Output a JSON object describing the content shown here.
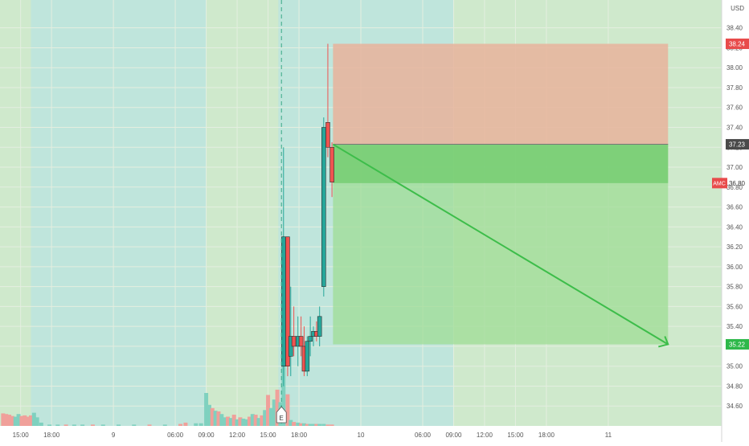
{
  "app": {
    "currency": "USD",
    "symbol_badge": "AMC"
  },
  "colors": {
    "up": "#26a69a",
    "down": "#ef5350",
    "vol_up": "#7fd1bf",
    "vol_down": "#f0a09a",
    "session_regular": "#cfe9cc",
    "session_extended": "#bfe5dc",
    "profit_zone": "#9fdc96",
    "loss_zone": "#e7b39b",
    "arrow": "#3dbd4a",
    "grid": "#e4eee0"
  },
  "badges": {
    "target": "35.22",
    "entry": "37.23",
    "stop": "38.24",
    "symbol_price": "36.80",
    "symbol": "AMC"
  },
  "chart_data": {
    "type": "candlestick",
    "ylim": [
      34.4,
      38.68
    ],
    "yticks": [
      "34.60",
      "34.80",
      "35.00",
      "35.20",
      "35.40",
      "35.60",
      "35.80",
      "36.00",
      "36.20",
      "36.40",
      "36.60",
      "36.80",
      "37.00",
      "37.20",
      "37.40",
      "37.60",
      "37.80",
      "38.00",
      "38.20",
      "38.40"
    ],
    "ytick_values": [
      34.6,
      34.8,
      35.0,
      35.2,
      35.4,
      35.6,
      35.8,
      36.0,
      36.2,
      36.4,
      36.6,
      36.8,
      37.0,
      37.2,
      37.4,
      37.6,
      37.8,
      38.0,
      38.2,
      38.4
    ],
    "xlim": [
      13.0,
      83.0
    ],
    "xticks": [
      "15:00",
      "18:00",
      "9",
      "06:00",
      "09:00",
      "12:00",
      "15:00",
      "18:00",
      "10",
      "06:00",
      "09:00",
      "12:00",
      "15:00",
      "18:00",
      "11"
    ],
    "xtick_values": [
      15,
      18,
      24,
      30,
      33,
      36,
      39,
      42,
      48,
      54,
      57,
      60,
      63,
      66,
      72
    ],
    "grid": true,
    "sessions": [
      {
        "type": "extended",
        "start": 16,
        "end": 33
      },
      {
        "type": "regular",
        "start": 33,
        "end": 40
      },
      {
        "type": "extended",
        "start": 40,
        "end": 57
      }
    ],
    "earnings_marker": {
      "time": 40.3,
      "label": "E"
    },
    "candles": [
      {
        "t": 40.5,
        "o": 35.0,
        "h": 37.2,
        "l": 34.8,
        "c": 36.3
      },
      {
        "t": 40.9,
        "o": 36.3,
        "h": 36.3,
        "l": 34.9,
        "c": 35.0
      },
      {
        "t": 41.2,
        "o": 35.1,
        "h": 35.8,
        "l": 34.9,
        "c": 35.3
      },
      {
        "t": 41.5,
        "o": 35.3,
        "h": 35.6,
        "l": 35.1,
        "c": 35.2
      },
      {
        "t": 41.9,
        "o": 35.2,
        "h": 35.5,
        "l": 35.0,
        "c": 35.3
      },
      {
        "t": 42.2,
        "o": 35.3,
        "h": 35.5,
        "l": 35.1,
        "c": 35.2
      },
      {
        "t": 42.5,
        "o": 35.2,
        "h": 35.4,
        "l": 34.9,
        "c": 34.95
      },
      {
        "t": 42.8,
        "o": 34.95,
        "h": 35.3,
        "l": 34.9,
        "c": 35.25
      },
      {
        "t": 43.1,
        "o": 35.25,
        "h": 35.5,
        "l": 35.1,
        "c": 35.3
      },
      {
        "t": 43.4,
        "o": 35.3,
        "h": 35.4,
        "l": 35.2,
        "c": 35.35
      },
      {
        "t": 43.7,
        "o": 35.35,
        "h": 35.45,
        "l": 35.25,
        "c": 35.3
      },
      {
        "t": 44.0,
        "o": 35.3,
        "h": 35.6,
        "l": 35.2,
        "c": 35.5
      },
      {
        "t": 44.4,
        "o": 35.8,
        "h": 37.5,
        "l": 35.7,
        "c": 37.4
      },
      {
        "t": 44.8,
        "o": 37.45,
        "h": 38.24,
        "l": 37.1,
        "c": 37.2
      },
      {
        "t": 45.2,
        "o": 37.2,
        "h": 37.25,
        "l": 36.7,
        "c": 36.85
      }
    ],
    "volume": [
      {
        "t": 13.3,
        "v": 19,
        "d": "down"
      },
      {
        "t": 13.6,
        "v": 18,
        "d": "down"
      },
      {
        "t": 13.9,
        "v": 17,
        "d": "down"
      },
      {
        "t": 14.2,
        "v": 15,
        "d": "down"
      },
      {
        "t": 14.5,
        "v": 14,
        "d": "up"
      },
      {
        "t": 14.8,
        "v": 18,
        "d": "up"
      },
      {
        "t": 15.1,
        "v": 15,
        "d": "down"
      },
      {
        "t": 15.4,
        "v": 16,
        "d": "down"
      },
      {
        "t": 15.7,
        "v": 14,
        "d": "down"
      },
      {
        "t": 16.0,
        "v": 16,
        "d": "down"
      },
      {
        "t": 16.3,
        "v": 20,
        "d": "up"
      },
      {
        "t": 16.6,
        "v": 13,
        "d": "up"
      },
      {
        "t": 17.0,
        "v": 5,
        "d": "up"
      },
      {
        "t": 17.8,
        "v": 2,
        "d": "up"
      },
      {
        "t": 18.6,
        "v": 2,
        "d": "up"
      },
      {
        "t": 19.4,
        "v": 2,
        "d": "down"
      },
      {
        "t": 20.2,
        "v": 2,
        "d": "up"
      },
      {
        "t": 21.0,
        "v": 2,
        "d": "up"
      },
      {
        "t": 22.0,
        "v": 2,
        "d": "down"
      },
      {
        "t": 23.0,
        "v": 2,
        "d": "up"
      },
      {
        "t": 24.5,
        "v": 2,
        "d": "up"
      },
      {
        "t": 26.0,
        "v": 2,
        "d": "up"
      },
      {
        "t": 27.5,
        "v": 2,
        "d": "down"
      },
      {
        "t": 29.0,
        "v": 2,
        "d": "up"
      },
      {
        "t": 30.5,
        "v": 3,
        "d": "down"
      },
      {
        "t": 31.0,
        "v": 5,
        "d": "down"
      },
      {
        "t": 32.0,
        "v": 4,
        "d": "up"
      },
      {
        "t": 32.5,
        "v": 4,
        "d": "up"
      },
      {
        "t": 33.0,
        "v": 50,
        "d": "up"
      },
      {
        "t": 33.3,
        "v": 32,
        "d": "up"
      },
      {
        "t": 33.6,
        "v": 27,
        "d": "down"
      },
      {
        "t": 33.9,
        "v": 23,
        "d": "up"
      },
      {
        "t": 34.2,
        "v": 22,
        "d": "down"
      },
      {
        "t": 34.5,
        "v": 18,
        "d": "up"
      },
      {
        "t": 34.8,
        "v": 13,
        "d": "up"
      },
      {
        "t": 35.1,
        "v": 14,
        "d": "down"
      },
      {
        "t": 35.4,
        "v": 12,
        "d": "up"
      },
      {
        "t": 35.7,
        "v": 17,
        "d": "down"
      },
      {
        "t": 36.0,
        "v": 10,
        "d": "up"
      },
      {
        "t": 36.3,
        "v": 13,
        "d": "down"
      },
      {
        "t": 36.6,
        "v": 11,
        "d": "up"
      },
      {
        "t": 36.9,
        "v": 10,
        "d": "up"
      },
      {
        "t": 37.2,
        "v": 14,
        "d": "down"
      },
      {
        "t": 37.5,
        "v": 18,
        "d": "up"
      },
      {
        "t": 37.8,
        "v": 17,
        "d": "down"
      },
      {
        "t": 38.1,
        "v": 12,
        "d": "up"
      },
      {
        "t": 38.4,
        "v": 16,
        "d": "down"
      },
      {
        "t": 38.7,
        "v": 24,
        "d": "up"
      },
      {
        "t": 39.0,
        "v": 47,
        "d": "down"
      },
      {
        "t": 39.3,
        "v": 27,
        "d": "up"
      },
      {
        "t": 39.6,
        "v": 40,
        "d": "up"
      },
      {
        "t": 39.9,
        "v": 55,
        "d": "down"
      },
      {
        "t": 40.2,
        "v": 36,
        "d": "up"
      },
      {
        "t": 40.5,
        "v": 100,
        "d": "up"
      },
      {
        "t": 40.9,
        "v": 48,
        "d": "down"
      },
      {
        "t": 41.2,
        "v": 9,
        "d": "up"
      },
      {
        "t": 41.5,
        "v": 6,
        "d": "down"
      },
      {
        "t": 41.9,
        "v": 5,
        "d": "up"
      },
      {
        "t": 42.2,
        "v": 4,
        "d": "down"
      },
      {
        "t": 42.5,
        "v": 4,
        "d": "up"
      },
      {
        "t": 42.8,
        "v": 3,
        "d": "down"
      },
      {
        "t": 43.1,
        "v": 3,
        "d": "up"
      },
      {
        "t": 43.4,
        "v": 3,
        "d": "up"
      },
      {
        "t": 43.7,
        "v": 3,
        "d": "down"
      },
      {
        "t": 44.0,
        "v": 3,
        "d": "up"
      },
      {
        "t": 44.4,
        "v": 3,
        "d": "up"
      },
      {
        "t": 44.8,
        "v": 2,
        "d": "down"
      },
      {
        "t": 45.2,
        "v": 2,
        "d": "down"
      }
    ],
    "position": {
      "side": "short",
      "start_time": 45.3,
      "end_time": 77.8,
      "entry": 37.23,
      "stop": 38.24,
      "target": 35.22,
      "current": 36.84
    }
  }
}
